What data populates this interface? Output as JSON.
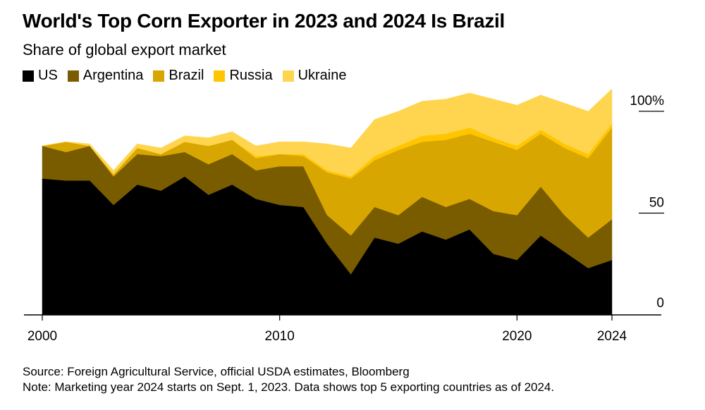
{
  "title": "World's Top Corn Exporter in 2023 and 2024 Is Brazil",
  "subtitle": "Share of global export market",
  "source": "Source: Foreign Agricultural Service, official USDA estimates, Bloomberg",
  "note": "Note: Marketing year 2024 starts on Sept. 1, 2023. Data shows top 5 exporting countries as of 2024.",
  "chart_data": {
    "type": "area",
    "stacked": true,
    "x": [
      2000,
      2001,
      2002,
      2003,
      2004,
      2005,
      2006,
      2007,
      2008,
      2009,
      2010,
      2011,
      2012,
      2013,
      2014,
      2015,
      2016,
      2017,
      2018,
      2019,
      2020,
      2021,
      2022,
      2023,
      2024
    ],
    "series": [
      {
        "name": "US",
        "color": "#000000",
        "values": [
          67,
          66,
          66,
          54,
          64,
          61,
          68,
          59,
          64,
          57,
          54,
          53,
          35,
          20,
          38,
          35,
          41,
          37,
          42,
          30,
          27,
          39,
          31,
          23,
          27
        ]
      },
      {
        "name": "Argentina",
        "color": "#7a5c00",
        "values": [
          16,
          14,
          17,
          14,
          15,
          17,
          12,
          15,
          15,
          14,
          19,
          20,
          14,
          19,
          15,
          14,
          17,
          16,
          15,
          21,
          22,
          24,
          18,
          15,
          20
        ]
      },
      {
        "name": "Brazil",
        "color": "#d8a600",
        "values": [
          0,
          5,
          0,
          1,
          3,
          1,
          5,
          9,
          7,
          6,
          6,
          5,
          21,
          28,
          23,
          32,
          27,
          33,
          32,
          34,
          32,
          26,
          33,
          39,
          45
        ]
      },
      {
        "name": "Russia",
        "color": "#ffc600",
        "values": [
          0,
          0,
          0,
          0,
          0,
          0,
          0,
          0,
          0,
          1,
          0,
          1,
          1,
          1,
          2,
          2,
          3,
          3,
          3,
          2,
          2,
          2,
          2,
          2,
          2
        ]
      },
      {
        "name": "Ukraine",
        "color": "#ffd54f",
        "values": [
          0,
          0,
          1,
          2,
          2,
          3,
          3,
          4,
          4,
          5,
          6,
          6,
          13,
          14,
          18,
          17,
          17,
          17,
          17,
          19,
          20,
          17,
          20,
          21,
          17
        ]
      }
    ],
    "y_ticks": [
      {
        "value": 100,
        "label": "100%"
      },
      {
        "value": 50,
        "label": "50"
      },
      {
        "value": 0,
        "label": "0"
      }
    ],
    "x_ticks": [
      {
        "value": 2000,
        "label": "2000"
      },
      {
        "value": 2010,
        "label": "2010"
      },
      {
        "value": 2020,
        "label": "2020"
      },
      {
        "value": 2024,
        "label": "2024"
      }
    ],
    "ylim": [
      0,
      100
    ],
    "xlim": [
      2000,
      2024
    ],
    "legend_position": "top-left",
    "grid": false
  }
}
